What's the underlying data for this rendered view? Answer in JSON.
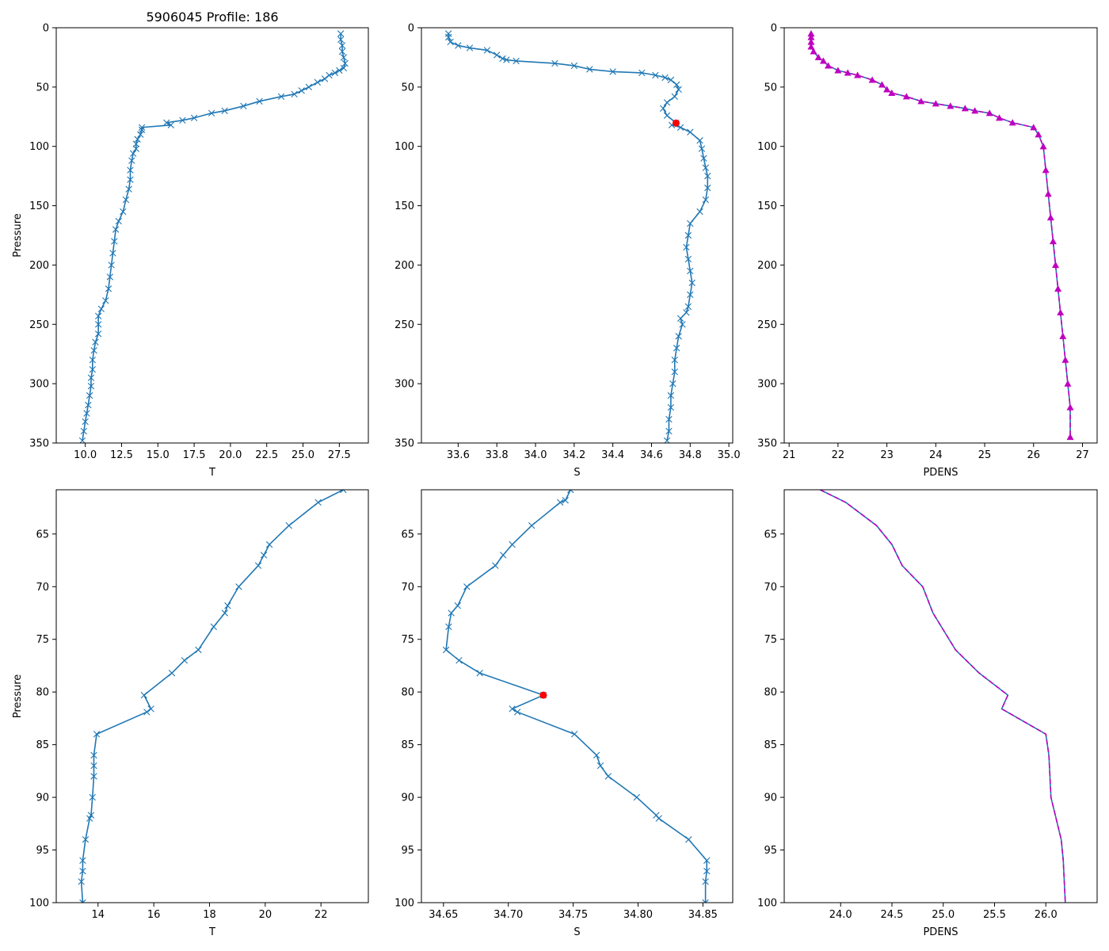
{
  "figure_title": "5906045 Profile: 186",
  "colors": {
    "line": "#1f77b4",
    "density": "#bf00bf",
    "flag": "#ff0000",
    "axes": "#000000"
  },
  "chart_data": [
    {
      "id": "T-full",
      "type": "line",
      "xlabel": "T",
      "ylabel": "Pressure",
      "xlim": [
        8.0,
        29.5
      ],
      "ylim": [
        350,
        0
      ],
      "xticks": [
        10.0,
        12.5,
        15.0,
        17.5,
        20.0,
        22.5,
        25.0,
        27.5
      ],
      "xtick_labels": [
        "10.0",
        "12.5",
        "15.0",
        "17.5",
        "20.0",
        "22.5",
        "25.0",
        "27.5"
      ],
      "yticks": [
        0,
        50,
        100,
        150,
        200,
        250,
        300,
        350
      ],
      "ytick_labels": [
        "0",
        "50",
        "100",
        "150",
        "200",
        "250",
        "300",
        "350"
      ],
      "marker": "x",
      "series": [
        {
          "name": "T",
          "x": [
            27.6,
            27.6,
            27.7,
            27.7,
            27.8,
            27.9,
            27.8,
            27.5,
            27.2,
            26.8,
            26.5,
            26.0,
            25.4,
            24.9,
            24.4,
            23.5,
            22.0,
            20.9,
            19.6,
            18.7,
            17.5,
            16.7,
            15.6,
            15.9,
            13.9,
            13.9,
            13.8,
            13.6,
            13.5,
            13.5,
            13.3,
            13.2,
            13.1,
            13.1,
            13.0,
            12.8,
            12.6,
            12.3,
            12.1,
            12.0,
            11.9,
            11.8,
            11.7,
            11.6,
            11.4,
            11.1,
            10.9,
            10.9,
            10.9,
            10.7,
            10.6,
            10.5,
            10.5,
            10.4,
            10.4,
            10.3,
            10.2,
            10.1,
            10.0,
            9.9,
            9.8
          ],
          "y": [
            5,
            10,
            15,
            20,
            25,
            30,
            34,
            36,
            38,
            40,
            43,
            46,
            50,
            53,
            56,
            58,
            62,
            66,
            70,
            72,
            76,
            78,
            80,
            82,
            84,
            86,
            90,
            94,
            98,
            102,
            106,
            112,
            120,
            128,
            136,
            145,
            155,
            163,
            170,
            180,
            190,
            200,
            210,
            220,
            230,
            237,
            243,
            250,
            258,
            265,
            272,
            280,
            288,
            295,
            302,
            310,
            318,
            325,
            332,
            340,
            348
          ]
        }
      ]
    },
    {
      "id": "S-full",
      "type": "line",
      "xlabel": "S",
      "ylabel": "",
      "xlim": [
        33.41,
        35.02
      ],
      "ylim": [
        350,
        0
      ],
      "xticks": [
        33.6,
        33.8,
        34.0,
        34.2,
        34.4,
        34.6,
        34.8,
        35.0
      ],
      "xtick_labels": [
        "33.6",
        "33.8",
        "34.0",
        "34.2",
        "34.4",
        "34.6",
        "34.8",
        "35.0"
      ],
      "yticks": [
        0,
        50,
        100,
        150,
        200,
        250,
        300,
        350
      ],
      "ytick_labels": [
        "0",
        "50",
        "100",
        "150",
        "200",
        "250",
        "300",
        "350"
      ],
      "marker": "x",
      "flag_point": {
        "x": 34.727,
        "y": 80.3
      },
      "series": [
        {
          "name": "S",
          "x": [
            33.55,
            33.55,
            33.56,
            33.6,
            33.66,
            33.75,
            33.8,
            33.83,
            33.85,
            33.9,
            34.1,
            34.2,
            34.28,
            34.4,
            34.55,
            34.62,
            34.67,
            34.7,
            34.73,
            34.74,
            34.72,
            34.68,
            34.66,
            34.68,
            34.727,
            34.705,
            34.75,
            34.8,
            34.85,
            34.86,
            34.87,
            34.88,
            34.89,
            34.89,
            34.88,
            34.85,
            34.8,
            34.79,
            34.78,
            34.79,
            34.8,
            34.81,
            34.8,
            34.79,
            34.78,
            34.75,
            34.76,
            34.74,
            34.73,
            34.72,
            34.72,
            34.71,
            34.7,
            34.7,
            34.69,
            34.69,
            34.68
          ],
          "y": [
            5,
            8,
            12,
            15,
            17,
            19,
            23,
            26,
            27,
            28,
            30,
            32,
            35,
            37,
            38,
            40,
            42,
            44,
            48,
            52,
            58,
            63,
            68,
            74,
            80.3,
            82,
            84,
            88,
            95,
            102,
            110,
            118,
            125,
            135,
            145,
            155,
            165,
            175,
            185,
            195,
            205,
            215,
            225,
            235,
            240,
            245,
            250,
            260,
            270,
            280,
            290,
            300,
            310,
            320,
            330,
            340,
            348
          ]
        }
      ]
    },
    {
      "id": "PDENS-full",
      "type": "line",
      "xlabel": "PDENS",
      "ylabel": "",
      "xlim": [
        20.9,
        27.3
      ],
      "ylim": [
        350,
        0
      ],
      "xticks": [
        21,
        22,
        23,
        24,
        25,
        26,
        27
      ],
      "xtick_labels": [
        "21",
        "22",
        "23",
        "24",
        "25",
        "26",
        "27"
      ],
      "yticks": [
        0,
        50,
        100,
        150,
        200,
        250,
        300,
        350
      ],
      "ytick_labels": [
        "0",
        "50",
        "100",
        "150",
        "200",
        "250",
        "300",
        "350"
      ],
      "marker": "triangle",
      "series": [
        {
          "name": "PDENS",
          "x": [
            21.45,
            21.45,
            21.45,
            21.45,
            21.5,
            21.6,
            21.7,
            21.8,
            22.0,
            22.2,
            22.4,
            22.7,
            22.9,
            23.0,
            23.1,
            23.4,
            23.7,
            24.0,
            24.3,
            24.6,
            24.8,
            25.1,
            25.3,
            25.57,
            26.0,
            26.1,
            26.2,
            26.25,
            26.3,
            26.35,
            26.4,
            26.45,
            26.5,
            26.55,
            26.6,
            26.65,
            26.7,
            26.75,
            26.75
          ],
          "y": [
            5,
            8,
            12,
            16,
            20,
            25,
            28,
            32,
            36,
            38,
            40,
            44,
            48,
            52,
            55,
            58,
            62,
            64,
            66,
            68,
            70,
            72,
            76,
            80,
            84,
            90,
            100,
            120,
            140,
            160,
            180,
            200,
            220,
            240,
            260,
            280,
            300,
            320,
            345
          ]
        }
      ]
    },
    {
      "id": "T-zoom",
      "type": "line",
      "xlabel": "T",
      "ylabel": "Pressure",
      "xlim": [
        12.5,
        23.7
      ],
      "ylim": [
        100,
        60.8
      ],
      "xticks": [
        14,
        16,
        18,
        20,
        22
      ],
      "xtick_labels": [
        "14",
        "16",
        "18",
        "20",
        "22"
      ],
      "yticks": [
        65,
        70,
        75,
        80,
        85,
        90,
        95,
        100
      ],
      "ytick_labels": [
        "65",
        "70",
        "75",
        "80",
        "85",
        "90",
        "95",
        "100"
      ],
      "marker": "x",
      "series": [
        {
          "name": "T",
          "x": [
            22.8,
            21.9,
            20.85,
            20.15,
            19.95,
            19.75,
            19.05,
            18.65,
            18.55,
            18.15,
            17.6,
            17.1,
            16.65,
            15.65,
            15.9,
            15.75,
            13.95,
            13.85,
            13.85,
            13.85,
            13.8,
            13.75,
            13.7,
            13.55,
            13.45,
            13.45,
            13.4,
            13.45
          ],
          "y": [
            60.8,
            62.0,
            64.2,
            66.0,
            67.0,
            68.0,
            70.0,
            71.8,
            72.5,
            73.8,
            76.0,
            77.0,
            78.2,
            80.3,
            81.6,
            81.9,
            84.0,
            86.0,
            87.0,
            88.0,
            90.0,
            91.7,
            92.0,
            94.0,
            96.0,
            97.0,
            98.0,
            100.0
          ]
        }
      ]
    },
    {
      "id": "S-zoom",
      "type": "line",
      "xlabel": "S",
      "ylabel": "",
      "xlim": [
        34.633,
        34.873
      ],
      "ylim": [
        100,
        60.8
      ],
      "xticks": [
        34.65,
        34.7,
        34.75,
        34.8,
        34.85
      ],
      "xtick_labels": [
        "34.65",
        "34.70",
        "34.75",
        "34.80",
        "34.85"
      ],
      "yticks": [
        65,
        70,
        75,
        80,
        85,
        90,
        95,
        100
      ],
      "ytick_labels": [
        "65",
        "70",
        "75",
        "80",
        "85",
        "90",
        "95",
        "100"
      ],
      "marker": "x",
      "flag_point": {
        "x": 34.727,
        "y": 80.3
      },
      "series": [
        {
          "name": "S",
          "x": [
            34.748,
            34.744,
            34.74,
            34.718,
            34.703,
            34.696,
            34.69,
            34.668,
            34.661,
            34.656,
            34.654,
            34.652,
            34.662,
            34.678,
            34.727,
            34.703,
            34.707,
            34.751,
            34.768,
            34.771,
            34.777,
            34.799,
            34.814,
            34.816,
            34.839,
            34.853,
            34.853,
            34.852,
            34.852
          ],
          "y": [
            60.8,
            61.8,
            62.0,
            64.2,
            66.0,
            67.0,
            68.0,
            70.0,
            71.8,
            72.5,
            73.8,
            76.0,
            77.0,
            78.2,
            80.3,
            81.6,
            81.9,
            84.0,
            86.0,
            87.0,
            88.0,
            90.0,
            91.7,
            92.0,
            94.0,
            96.0,
            97.0,
            98.0,
            100.0
          ]
        }
      ]
    },
    {
      "id": "PDENS-zoom",
      "type": "line",
      "xlabel": "PDENS",
      "ylabel": "",
      "xlim": [
        23.45,
        26.5
      ],
      "ylim": [
        100,
        60.8
      ],
      "xticks": [
        24.0,
        24.5,
        25.0,
        25.5,
        26.0
      ],
      "xtick_labels": [
        "24.0",
        "24.5",
        "25.0",
        "25.5",
        "26.0"
      ],
      "yticks": [
        65,
        70,
        75,
        80,
        85,
        90,
        95,
        100
      ],
      "ytick_labels": [
        "65",
        "70",
        "75",
        "80",
        "85",
        "90",
        "95",
        "100"
      ],
      "marker": "none",
      "dashed_overlay": true,
      "series": [
        {
          "name": "PDENS",
          "x": [
            23.8,
            24.05,
            24.35,
            24.5,
            24.6,
            24.8,
            24.9,
            25.12,
            25.35,
            25.63,
            25.57,
            26.0,
            26.03,
            26.04,
            26.05,
            26.1,
            26.15,
            26.17,
            26.18,
            26.19
          ],
          "y": [
            60.8,
            62.0,
            64.2,
            66.0,
            68.0,
            70.0,
            72.5,
            76.0,
            78.2,
            80.3,
            81.6,
            84.0,
            86.0,
            88.0,
            90.0,
            92.0,
            94.0,
            96.0,
            98.0,
            100.0
          ]
        }
      ]
    }
  ]
}
